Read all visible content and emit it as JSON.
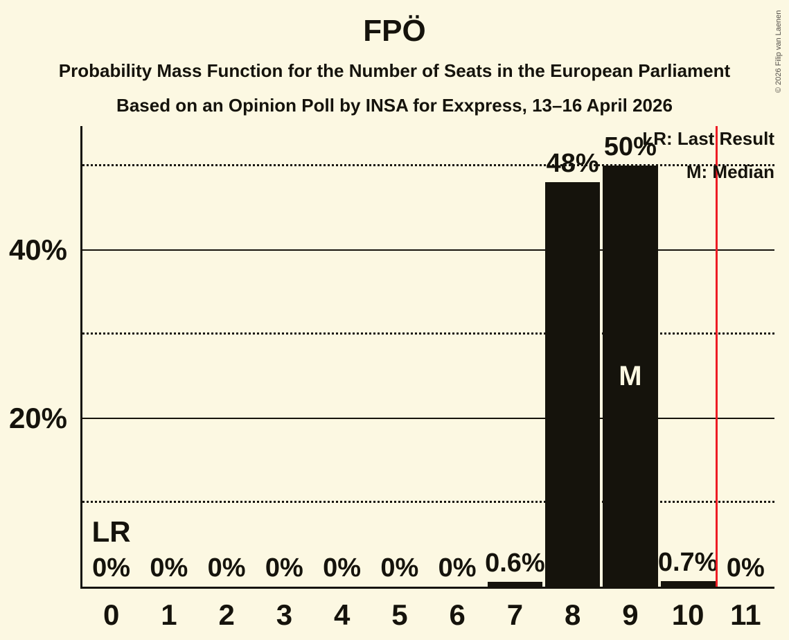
{
  "page": {
    "title": "FPÖ",
    "subtitle": "Probability Mass Function for the Number of Seats in the European Parliament",
    "poll_line": "Based on an Opinion Poll by INSA for Exxpress, 13–16 April 2026",
    "copyright": "© 2026 Filip van Laenen"
  },
  "colors": {
    "background": "#FCF8E2",
    "bar": "#15130C",
    "text": "#15130C",
    "bar_label_inside": "#FCF8E2",
    "last_result_line": "#ED1C24",
    "copyright_text": "#55504A"
  },
  "chart_data": {
    "type": "bar",
    "title": "FPÖ",
    "categories": [
      "0",
      "1",
      "2",
      "3",
      "4",
      "5",
      "6",
      "7",
      "8",
      "9",
      "10",
      "11"
    ],
    "values": [
      0,
      0,
      0,
      0,
      0,
      0,
      0,
      0.6,
      48,
      50,
      0.7,
      0
    ],
    "bar_labels": [
      "0%",
      "0%",
      "0%",
      "0%",
      "0%",
      "0%",
      "0%",
      "0.6%",
      "48%",
      "50%",
      "0.7%",
      "0%"
    ],
    "y_axis": {
      "range": [
        0,
        54.7
      ],
      "ticks": [
        {
          "value": 20,
          "label": "20%"
        },
        {
          "value": 40,
          "label": "40%"
        }
      ]
    },
    "gridlines": [
      {
        "value": 10,
        "style": "dotted"
      },
      {
        "value": 20,
        "style": "solid"
      },
      {
        "value": 30,
        "style": "dotted"
      },
      {
        "value": 40,
        "style": "solid"
      },
      {
        "value": 50,
        "style": "dotted"
      }
    ],
    "median": {
      "category": "9",
      "marker": "M"
    },
    "last_result": {
      "marker": "LR",
      "label_category": "0",
      "line_position_seats": 10.5
    },
    "legend": {
      "last_result": "LR: Last Result",
      "median": "M: Median"
    },
    "legend_position": "top-right",
    "grid": true
  }
}
